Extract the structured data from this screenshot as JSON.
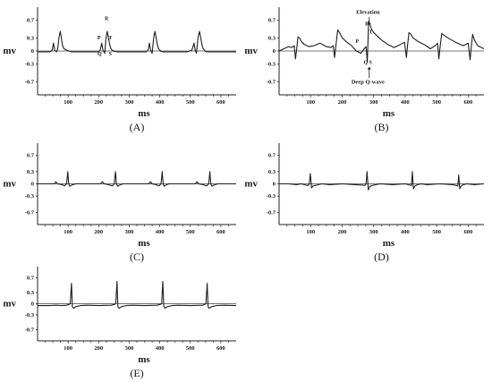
{
  "chart_data": [
    {
      "caption": "(A)",
      "type": "line",
      "ylabel": "mv",
      "xlabel": "ms",
      "xlim": [
        0,
        650
      ],
      "ylim": [
        -1.0,
        1.0
      ],
      "y_ticks": [
        0.7,
        0.3,
        0,
        -0.3,
        -0.7
      ],
      "y_tick_labels": [
        "0.7",
        "0.3",
        "0",
        "-0.3",
        "-0.7"
      ],
      "x_ticks": [
        100,
        200,
        300,
        400,
        500,
        600
      ],
      "x_tick_labels": [
        "100",
        "200",
        "300",
        "400",
        "500",
        "600"
      ],
      "series": [
        {
          "x": [
            0,
            40,
            48,
            52,
            56,
            62,
            66,
            70,
            74,
            78,
            82,
            86,
            95,
            110,
            140,
            170,
            200,
            205,
            210,
            214,
            220,
            224,
            228,
            232,
            236,
            240,
            244,
            250,
            262,
            280,
            320,
            355,
            362,
            366,
            370,
            375,
            380,
            384,
            388,
            392,
            396,
            400,
            404,
            412,
            425,
            450,
            490,
            505,
            512,
            516,
            520,
            525,
            530,
            534,
            538,
            542,
            546,
            550,
            554,
            560,
            572,
            600,
            650
          ],
          "y": [
            -0.02,
            -0.02,
            0.02,
            0.18,
            0.02,
            -0.02,
            0.05,
            0.3,
            0.45,
            0.3,
            0.12,
            0.05,
            0.02,
            -0.02,
            -0.02,
            -0.02,
            -0.02,
            0.02,
            0.18,
            0.02,
            -0.05,
            0.3,
            0.45,
            0.3,
            0.15,
            0.05,
            0.02,
            -0.01,
            -0.02,
            -0.02,
            -0.02,
            -0.02,
            0.02,
            0.18,
            0.02,
            -0.05,
            0.3,
            0.45,
            0.3,
            0.15,
            0.05,
            0.02,
            -0.01,
            -0.02,
            -0.02,
            -0.02,
            -0.02,
            0.02,
            0.18,
            0.02,
            -0.05,
            0.3,
            0.45,
            0.3,
            0.15,
            0.05,
            0.02,
            -0.01,
            -0.02,
            -0.02,
            -0.02,
            -0.02,
            -0.02
          ]
        }
      ],
      "annotations": [
        {
          "text": "P",
          "x": 201,
          "y": 0.27
        },
        {
          "text": "Q",
          "x": 203,
          "y": -0.1
        },
        {
          "text": "R",
          "x": 226,
          "y": 0.7
        },
        {
          "text": "T",
          "x": 238,
          "y": 0.27
        },
        {
          "text": "S",
          "x": 238,
          "y": -0.1
        }
      ]
    },
    {
      "caption": "(B)",
      "type": "line",
      "ylabel": "mv",
      "xlabel": "ms",
      "xlim": [
        0,
        650
      ],
      "ylim": [
        -1.0,
        1.0
      ],
      "y_ticks": [
        0.7,
        0.3,
        0,
        -0.3,
        -0.7
      ],
      "y_tick_labels": [
        "0.7",
        "0.3",
        "0",
        "-0.3",
        "-0.7"
      ],
      "x_ticks": [
        100,
        200,
        300,
        400,
        500,
        600
      ],
      "x_tick_labels": [
        "100",
        "200",
        "300",
        "400",
        "500",
        "600"
      ],
      "series": [
        {
          "x": [
            0,
            15,
            30,
            40,
            48,
            52,
            56,
            60,
            65,
            70,
            80,
            95,
            110,
            130,
            150,
            165,
            172,
            176,
            180,
            186,
            192,
            200,
            215,
            230,
            245,
            260,
            270,
            276,
            280,
            284,
            288,
            293,
            300,
            310,
            325,
            345,
            365,
            385,
            398,
            404,
            408,
            412,
            418,
            425,
            440,
            460,
            480,
            495,
            503,
            507,
            511,
            516,
            525,
            540,
            560,
            585,
            600,
            606,
            610,
            614,
            620,
            630,
            650
          ],
          "y": [
            0.0,
            0.05,
            0.1,
            0.08,
            0.12,
            -0.18,
            0.05,
            0.32,
            0.3,
            0.22,
            0.15,
            0.1,
            0.12,
            0.18,
            0.1,
            0.08,
            0.12,
            -0.15,
            0.1,
            0.48,
            0.42,
            0.3,
            0.2,
            0.12,
            0.0,
            -0.05,
            0.05,
            0.1,
            -0.25,
            0.68,
            0.62,
            0.5,
            0.42,
            0.35,
            0.25,
            0.15,
            0.08,
            0.15,
            0.2,
            -0.15,
            0.15,
            0.42,
            0.38,
            0.3,
            0.22,
            0.15,
            0.05,
            0.12,
            0.18,
            -0.18,
            0.1,
            0.4,
            0.35,
            0.28,
            0.2,
            0.12,
            0.18,
            -0.2,
            0.1,
            0.38,
            0.25,
            0.12,
            0.05
          ]
        }
      ],
      "annotations": [
        {
          "text": "Elevation",
          "x": 282,
          "y": 0.85
        },
        {
          "text": "P",
          "x": 248,
          "y": 0.18
        },
        {
          "text": "R",
          "x": 279,
          "y": 0.58
        },
        {
          "text": "T",
          "x": 291,
          "y": 0.4
        },
        {
          "text": "Q",
          "x": 275,
          "y": -0.3
        },
        {
          "text": "S",
          "x": 290,
          "y": -0.3
        },
        {
          "text": "Deep Q-wave",
          "x": 282,
          "y": -0.74
        }
      ]
    },
    {
      "caption": "(C)",
      "type": "line",
      "ylabel": "mv",
      "xlabel": "ms",
      "xlim": [
        0,
        650
      ],
      "ylim": [
        -1.0,
        1.0
      ],
      "y_ticks": [
        0.7,
        0.3,
        0,
        -0.3,
        -0.7
      ],
      "y_tick_labels": [
        "0.7",
        "0.3",
        "0",
        "-0.3",
        "-0.7"
      ],
      "x_ticks": [
        100,
        200,
        300,
        400,
        500,
        600
      ],
      "x_tick_labels": [
        "100",
        "200",
        "300",
        "400",
        "500",
        "600"
      ],
      "series": [
        {
          "x": [
            0,
            40,
            55,
            60,
            65,
            80,
            88,
            95,
            99,
            102,
            106,
            112,
            125,
            140,
            180,
            205,
            213,
            218,
            232,
            245,
            251,
            255,
            258,
            262,
            268,
            280,
            300,
            345,
            363,
            370,
            375,
            388,
            398,
            404,
            408,
            411,
            414,
            420,
            430,
            450,
            495,
            515,
            522,
            527,
            542,
            553,
            560,
            564,
            567,
            571,
            577,
            590,
            620,
            650
          ],
          "y": [
            0.0,
            0.0,
            0.0,
            0.05,
            0.0,
            -0.02,
            -0.05,
            0.0,
            0.3,
            0.0,
            -0.06,
            -0.03,
            0.0,
            0.0,
            0.0,
            0.0,
            0.05,
            0.0,
            -0.02,
            -0.05,
            0.0,
            0.3,
            0.0,
            -0.06,
            -0.03,
            0.0,
            0.0,
            0.0,
            0.0,
            0.05,
            0.0,
            -0.02,
            -0.05,
            0.0,
            0.3,
            0.0,
            -0.06,
            -0.03,
            0.0,
            0.0,
            0.0,
            0.0,
            0.05,
            0.0,
            -0.02,
            -0.05,
            0.0,
            0.3,
            0.0,
            -0.06,
            -0.03,
            0.0,
            0.0,
            0.0
          ]
        }
      ],
      "annotations": []
    },
    {
      "caption": "(D)",
      "type": "line",
      "ylabel": "mv",
      "xlabel": "ms",
      "xlim": [
        0,
        650
      ],
      "ylim": [
        -1.0,
        1.0
      ],
      "y_ticks": [
        0.7,
        0.3,
        0,
        -0.3,
        -0.7
      ],
      "y_tick_labels": [
        "0.7",
        "0.3",
        "0",
        "-0.3",
        "-0.7"
      ],
      "x_ticks": [
        100,
        200,
        300,
        400,
        500,
        600
      ],
      "x_tick_labels": [
        "100",
        "200",
        "300",
        "400",
        "500",
        "600"
      ],
      "series": [
        {
          "x": [
            0,
            30,
            55,
            70,
            85,
            92,
            96,
            99,
            103,
            108,
            120,
            135,
            160,
            200,
            240,
            265,
            272,
            276,
            279,
            283,
            288,
            300,
            320,
            360,
            400,
            415,
            420,
            423,
            426,
            430,
            436,
            450,
            470,
            510,
            550,
            562,
            567,
            570,
            573,
            577,
            582,
            595,
            620,
            650
          ],
          "y": [
            0.0,
            0.0,
            -0.02,
            0.0,
            -0.03,
            -0.04,
            0.0,
            0.25,
            -0.1,
            -0.05,
            -0.03,
            0.0,
            -0.02,
            0.0,
            -0.02,
            -0.03,
            -0.04,
            0.0,
            0.3,
            -0.15,
            -0.06,
            -0.03,
            0.0,
            -0.02,
            0.0,
            -0.03,
            -0.04,
            0.3,
            -0.12,
            -0.06,
            -0.03,
            0.0,
            -0.02,
            0.0,
            -0.02,
            -0.04,
            -0.05,
            0.22,
            -0.12,
            -0.06,
            -0.03,
            0.0,
            -0.02,
            0.0
          ]
        }
      ],
      "annotations": []
    },
    {
      "caption": "(E)",
      "type": "line",
      "ylabel": "mv",
      "xlabel": "ms",
      "xlim": [
        0,
        650
      ],
      "ylim": [
        -1.0,
        1.0
      ],
      "y_ticks": [
        0.7,
        0.3,
        0,
        -0.3,
        -0.7
      ],
      "y_tick_labels": [
        "0.7",
        "0.3",
        "0",
        "-0.3",
        "-0.7"
      ],
      "x_ticks": [
        100,
        200,
        300,
        400,
        500,
        600
      ],
      "x_tick_labels": [
        "100",
        "200",
        "300",
        "400",
        "500",
        "600"
      ],
      "series": [
        {
          "x": [
            0,
            40,
            60,
            80,
            95,
            103,
            107,
            111,
            114,
            118,
            125,
            140,
            160,
            200,
            240,
            252,
            256,
            260,
            263,
            267,
            275,
            290,
            310,
            350,
            390,
            402,
            406,
            410,
            413,
            417,
            425,
            440,
            460,
            500,
            540,
            547,
            551,
            555,
            558,
            562,
            570,
            585,
            610,
            650
          ],
          "y": [
            -0.05,
            -0.05,
            -0.04,
            -0.05,
            -0.04,
            -0.02,
            0.0,
            0.55,
            -0.08,
            -0.12,
            -0.08,
            -0.05,
            -0.04,
            -0.05,
            -0.04,
            -0.02,
            0.0,
            0.6,
            -0.08,
            -0.12,
            -0.08,
            -0.05,
            -0.04,
            -0.05,
            -0.04,
            -0.02,
            0.0,
            0.6,
            -0.08,
            -0.12,
            -0.08,
            -0.05,
            -0.04,
            -0.05,
            -0.04,
            -0.02,
            0.0,
            0.55,
            -0.08,
            -0.12,
            -0.08,
            -0.05,
            -0.04,
            -0.05
          ]
        }
      ],
      "annotations": []
    }
  ]
}
